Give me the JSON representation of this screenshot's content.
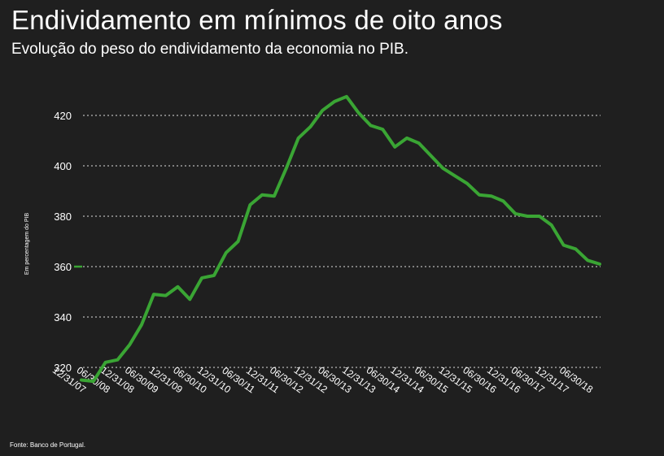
{
  "title": "Endividamento em mínimos de oito anos",
  "subtitle": "Evolução do peso do endividamento da economia no PIB.",
  "source": "Fonte: Banco de Portugal.",
  "colors": {
    "background": "#1f1f1f",
    "line": "#3aa534",
    "grid": "#ffffff",
    "text": "#ffffff"
  },
  "chart_data": {
    "type": "line",
    "title": "Endividamento em mínimos de oito anos",
    "subtitle": "Evolução do peso do endividamento da economia no PIB.",
    "xlabel": "",
    "ylabel": "Em percentagem do PIB",
    "ylim": [
      315,
      432
    ],
    "yticks": [
      320,
      340,
      360,
      380,
      400,
      420
    ],
    "ytick_labels": [
      "320",
      "340",
      "360",
      "380",
      "400",
      "420"
    ],
    "highlight_tick": 360,
    "grid": true,
    "legend": "none",
    "xtick_labels": [
      "12/31/07",
      "06/30/08",
      "12/31/08",
      "06/30/09",
      "12/31/09",
      "06/30/10",
      "12/31/10",
      "06/30/11",
      "12/31/11",
      "06/30/12",
      "12/31/12",
      "06/30/13",
      "12/31/13",
      "06/30/14",
      "12/31/14",
      "06/30/15",
      "12/31/15",
      "06/30/16",
      "12/31/16",
      "06/30/17",
      "12/31/17",
      "06/30/18"
    ],
    "series": [
      {
        "name": "Endividamento da economia",
        "values": [
          315,
          314.5,
          322,
          323,
          329,
          337,
          349,
          348.5,
          352,
          347,
          355.5,
          356.5,
          365.5,
          370,
          384.5,
          388.5,
          388,
          399,
          411,
          415.5,
          422,
          425.5,
          427.5,
          421,
          416,
          414.5,
          407.5,
          411,
          409,
          404,
          399,
          396,
          393,
          388.5,
          388,
          386,
          381,
          380,
          380,
          376.5,
          368.5,
          367,
          362.5,
          361
        ]
      }
    ]
  }
}
